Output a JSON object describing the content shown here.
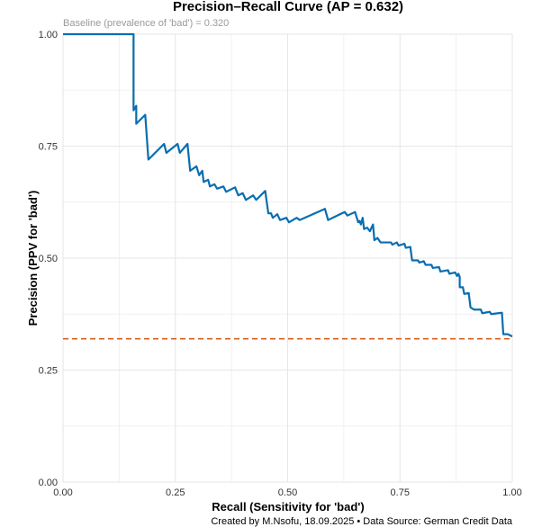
{
  "chart_data": {
    "type": "line",
    "title": "Precision–Recall Curve (AP = 0.632)",
    "subtitle": "Baseline (prevalence of 'bad') = 0.320",
    "xlabel": "Recall (Sensitivity for 'bad')",
    "ylabel": "Precision (PPV for 'bad')",
    "caption": "Created by M.Nsofu, 18.09.2025 • Data Source: German Credit Data",
    "xlim": [
      0,
      1
    ],
    "ylim": [
      0,
      1
    ],
    "x_ticks": [
      "0.00",
      "0.25",
      "0.50",
      "0.75",
      "1.00"
    ],
    "y_ticks": [
      "0.00",
      "0.25",
      "0.50",
      "0.75",
      "1.00"
    ],
    "grid": true,
    "colors": {
      "curve": "#0a6eb0",
      "baseline": "#d95f1a"
    },
    "baseline": 0.32,
    "series": [
      {
        "points": [
          [
            0.0,
            1.0
          ],
          [
            0.157,
            1.0
          ],
          [
            0.157,
            0.83
          ],
          [
            0.163,
            0.84
          ],
          [
            0.163,
            0.8
          ],
          [
            0.183,
            0.82
          ],
          [
            0.19,
            0.72
          ],
          [
            0.225,
            0.755
          ],
          [
            0.23,
            0.735
          ],
          [
            0.255,
            0.755
          ],
          [
            0.26,
            0.735
          ],
          [
            0.277,
            0.755
          ],
          [
            0.283,
            0.695
          ],
          [
            0.297,
            0.705
          ],
          [
            0.303,
            0.685
          ],
          [
            0.31,
            0.695
          ],
          [
            0.313,
            0.67
          ],
          [
            0.323,
            0.675
          ],
          [
            0.327,
            0.66
          ],
          [
            0.337,
            0.665
          ],
          [
            0.343,
            0.655
          ],
          [
            0.357,
            0.66
          ],
          [
            0.363,
            0.648
          ],
          [
            0.383,
            0.658
          ],
          [
            0.39,
            0.64
          ],
          [
            0.4,
            0.645
          ],
          [
            0.407,
            0.63
          ],
          [
            0.423,
            0.64
          ],
          [
            0.43,
            0.63
          ],
          [
            0.45,
            0.65
          ],
          [
            0.457,
            0.6
          ],
          [
            0.463,
            0.6
          ],
          [
            0.467,
            0.59
          ],
          [
            0.477,
            0.598
          ],
          [
            0.483,
            0.585
          ],
          [
            0.497,
            0.59
          ],
          [
            0.503,
            0.58
          ],
          [
            0.52,
            0.59
          ],
          [
            0.527,
            0.585
          ],
          [
            0.583,
            0.61
          ],
          [
            0.59,
            0.585
          ],
          [
            0.627,
            0.603
          ],
          [
            0.633,
            0.595
          ],
          [
            0.65,
            0.603
          ],
          [
            0.657,
            0.58
          ],
          [
            0.66,
            0.583
          ],
          [
            0.663,
            0.575
          ],
          [
            0.667,
            0.59
          ],
          [
            0.67,
            0.565
          ],
          [
            0.677,
            0.568
          ],
          [
            0.683,
            0.56
          ],
          [
            0.69,
            0.575
          ],
          [
            0.693,
            0.54
          ],
          [
            0.7,
            0.545
          ],
          [
            0.707,
            0.535
          ],
          [
            0.73,
            0.535
          ],
          [
            0.733,
            0.53
          ],
          [
            0.743,
            0.535
          ],
          [
            0.747,
            0.528
          ],
          [
            0.76,
            0.532
          ],
          [
            0.763,
            0.523
          ],
          [
            0.773,
            0.525
          ],
          [
            0.777,
            0.495
          ],
          [
            0.79,
            0.495
          ],
          [
            0.793,
            0.49
          ],
          [
            0.803,
            0.493
          ],
          [
            0.807,
            0.485
          ],
          [
            0.82,
            0.485
          ],
          [
            0.823,
            0.478
          ],
          [
            0.837,
            0.48
          ],
          [
            0.84,
            0.47
          ],
          [
            0.857,
            0.473
          ],
          [
            0.86,
            0.465
          ],
          [
            0.873,
            0.468
          ],
          [
            0.877,
            0.46
          ],
          [
            0.88,
            0.465
          ],
          [
            0.883,
            0.458
          ],
          [
            0.883,
            0.435
          ],
          [
            0.89,
            0.435
          ],
          [
            0.893,
            0.42
          ],
          [
            0.903,
            0.422
          ],
          [
            0.907,
            0.39
          ],
          [
            0.915,
            0.385
          ],
          [
            0.93,
            0.385
          ],
          [
            0.933,
            0.377
          ],
          [
            0.95,
            0.38
          ],
          [
            0.953,
            0.375
          ],
          [
            0.977,
            0.378
          ],
          [
            0.98,
            0.33
          ],
          [
            0.99,
            0.33
          ],
          [
            1.0,
            0.325
          ]
        ]
      }
    ]
  }
}
